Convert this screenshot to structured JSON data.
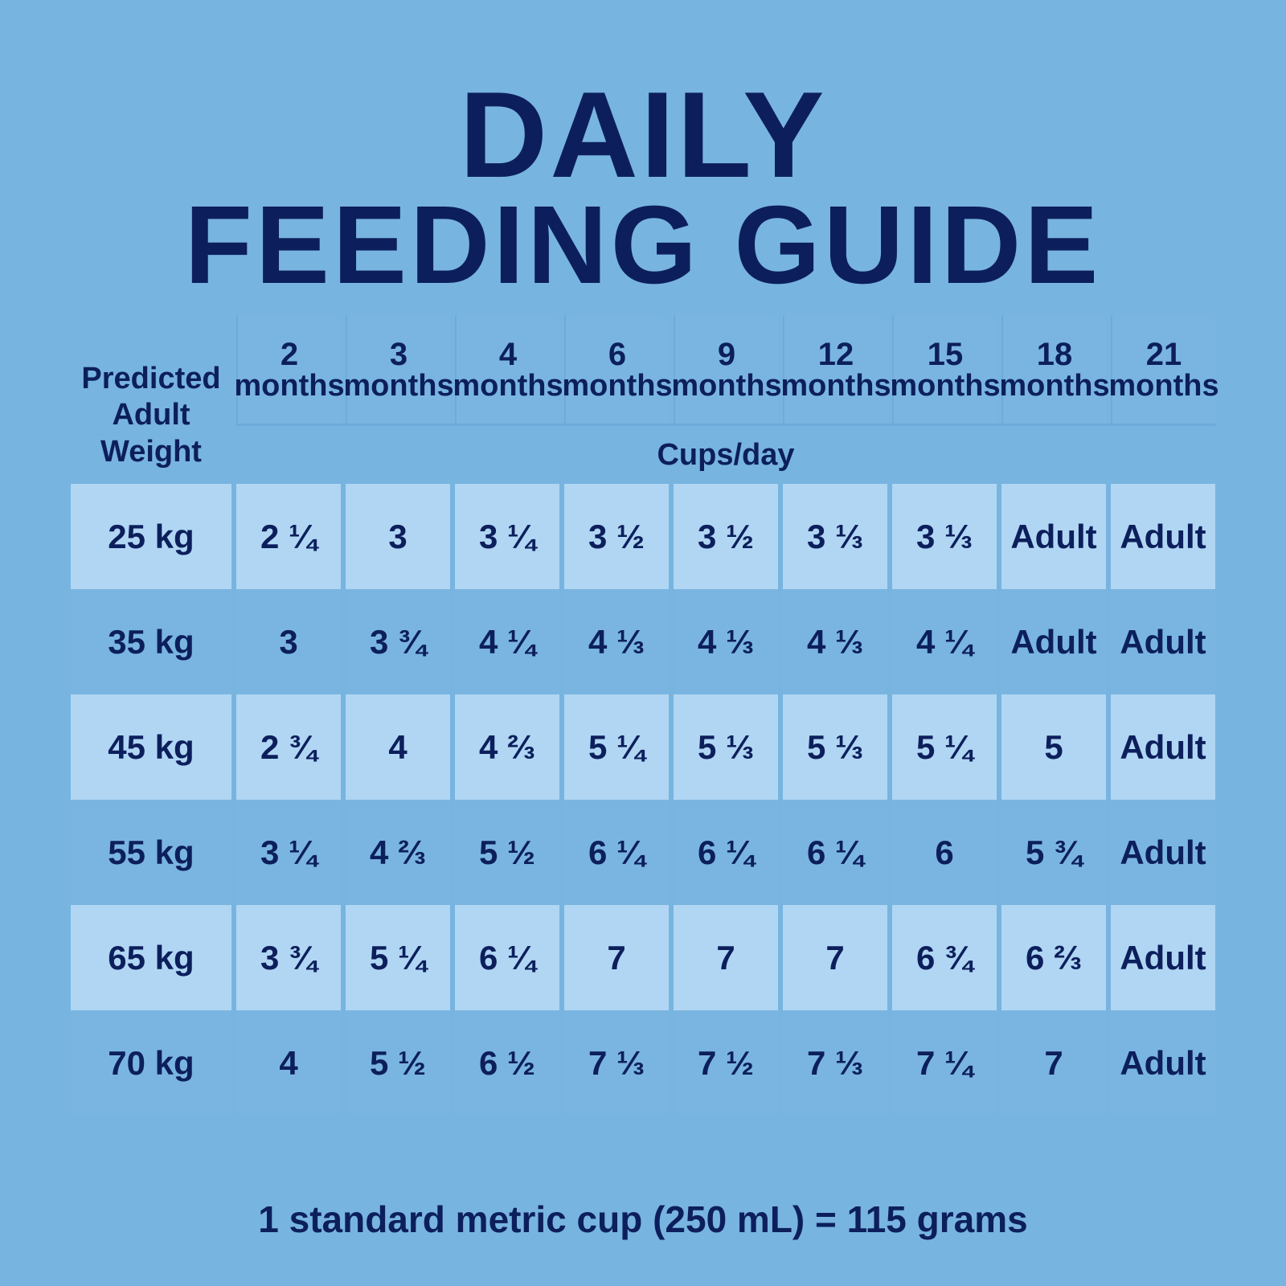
{
  "title_line1": "DAILY",
  "title_line2": "FEEDING GUIDE",
  "weight_header": "Predicted Adult Weight",
  "unit_label": "Cups/day",
  "months": [
    {
      "n": "2",
      "label": "months"
    },
    {
      "n": "3",
      "label": "months"
    },
    {
      "n": "4",
      "label": "months"
    },
    {
      "n": "6",
      "label": "months"
    },
    {
      "n": "9",
      "label": "months"
    },
    {
      "n": "12",
      "label": "months"
    },
    {
      "n": "15",
      "label": "months"
    },
    {
      "n": "18",
      "label": "months"
    },
    {
      "n": "21",
      "label": "months"
    }
  ],
  "rows": [
    {
      "weight": "25 kg",
      "values": [
        "2 ¼",
        "3",
        "3 ¼",
        "3 ½",
        "3 ½",
        "3 ⅓",
        "3 ⅓",
        "Adult",
        "Adult"
      ]
    },
    {
      "weight": "35 kg",
      "values": [
        "3",
        "3 ¾",
        "4 ¼",
        "4 ⅓",
        "4 ⅓",
        "4 ⅓",
        "4 ¼",
        "Adult",
        "Adult"
      ]
    },
    {
      "weight": "45 kg",
      "values": [
        "2 ¾",
        "4",
        "4 ⅔",
        "5 ¼",
        "5 ⅓",
        "5 ⅓",
        "5 ¼",
        "5",
        "Adult"
      ]
    },
    {
      "weight": "55 kg",
      "values": [
        "3 ¼",
        "4 ⅔",
        "5 ½",
        "6 ¼",
        "6 ¼",
        "6 ¼",
        "6",
        "5 ¾",
        "Adult"
      ]
    },
    {
      "weight": "65 kg",
      "values": [
        "3 ¾",
        "5 ¼",
        "6 ¼",
        "7",
        "7",
        "7",
        "6 ¾",
        "6 ⅔",
        "Adult"
      ]
    },
    {
      "weight": "70 kg",
      "values": [
        "4",
        "5 ½",
        "6 ½",
        "7 ⅓",
        "7 ½",
        "7 ⅓",
        "7 ¼",
        "7",
        "Adult"
      ]
    }
  ],
  "footer": "1 standard metric cup (250 mL) = 115 grams",
  "colors": {
    "background": "#78b4e0",
    "text": "#0c1f5c",
    "shaded_row": "#b0d6f3"
  }
}
